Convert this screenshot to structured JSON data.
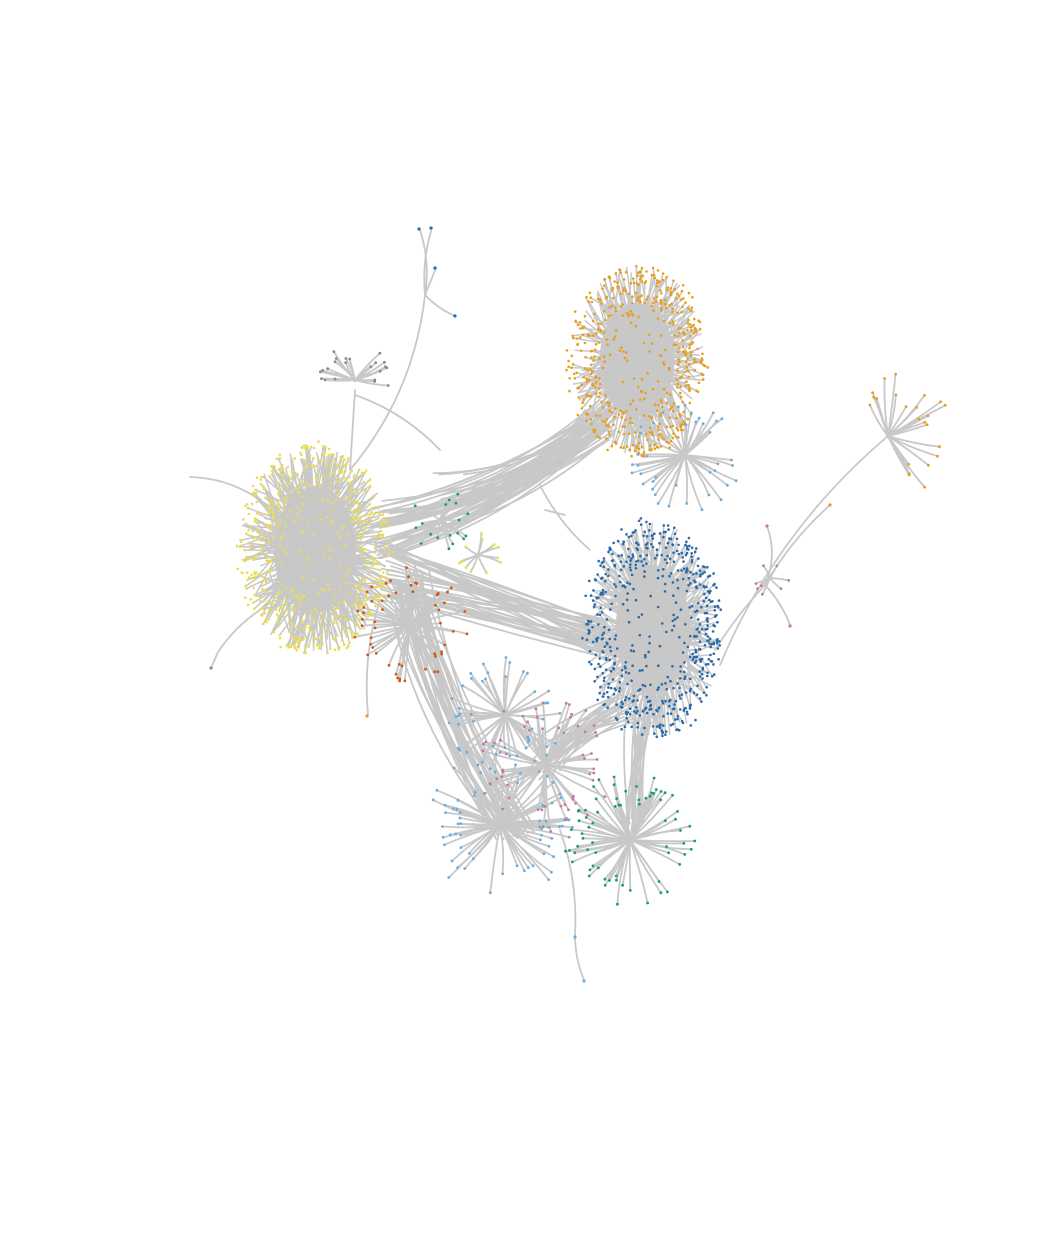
{
  "graph": {
    "background": "#ffffff",
    "edge_color": "#c8c8c8",
    "communities": [
      {
        "id": "yellow",
        "color": "#e8dc5a",
        "size": "large"
      },
      {
        "id": "orange",
        "color": "#e69f1e",
        "size": "large"
      },
      {
        "id": "dark-blue",
        "color": "#2a6aa8",
        "size": "large"
      },
      {
        "id": "vermillion",
        "color": "#cc5a18",
        "size": "small"
      },
      {
        "id": "pink",
        "color": "#c57aa0",
        "size": "medium"
      },
      {
        "id": "sky-blue",
        "color": "#6aaee0",
        "size": "medium"
      },
      {
        "id": "green",
        "color": "#1a9a78",
        "size": "medium"
      },
      {
        "id": "grey",
        "color": "#8a8a8a",
        "size": "small"
      }
    ]
  }
}
